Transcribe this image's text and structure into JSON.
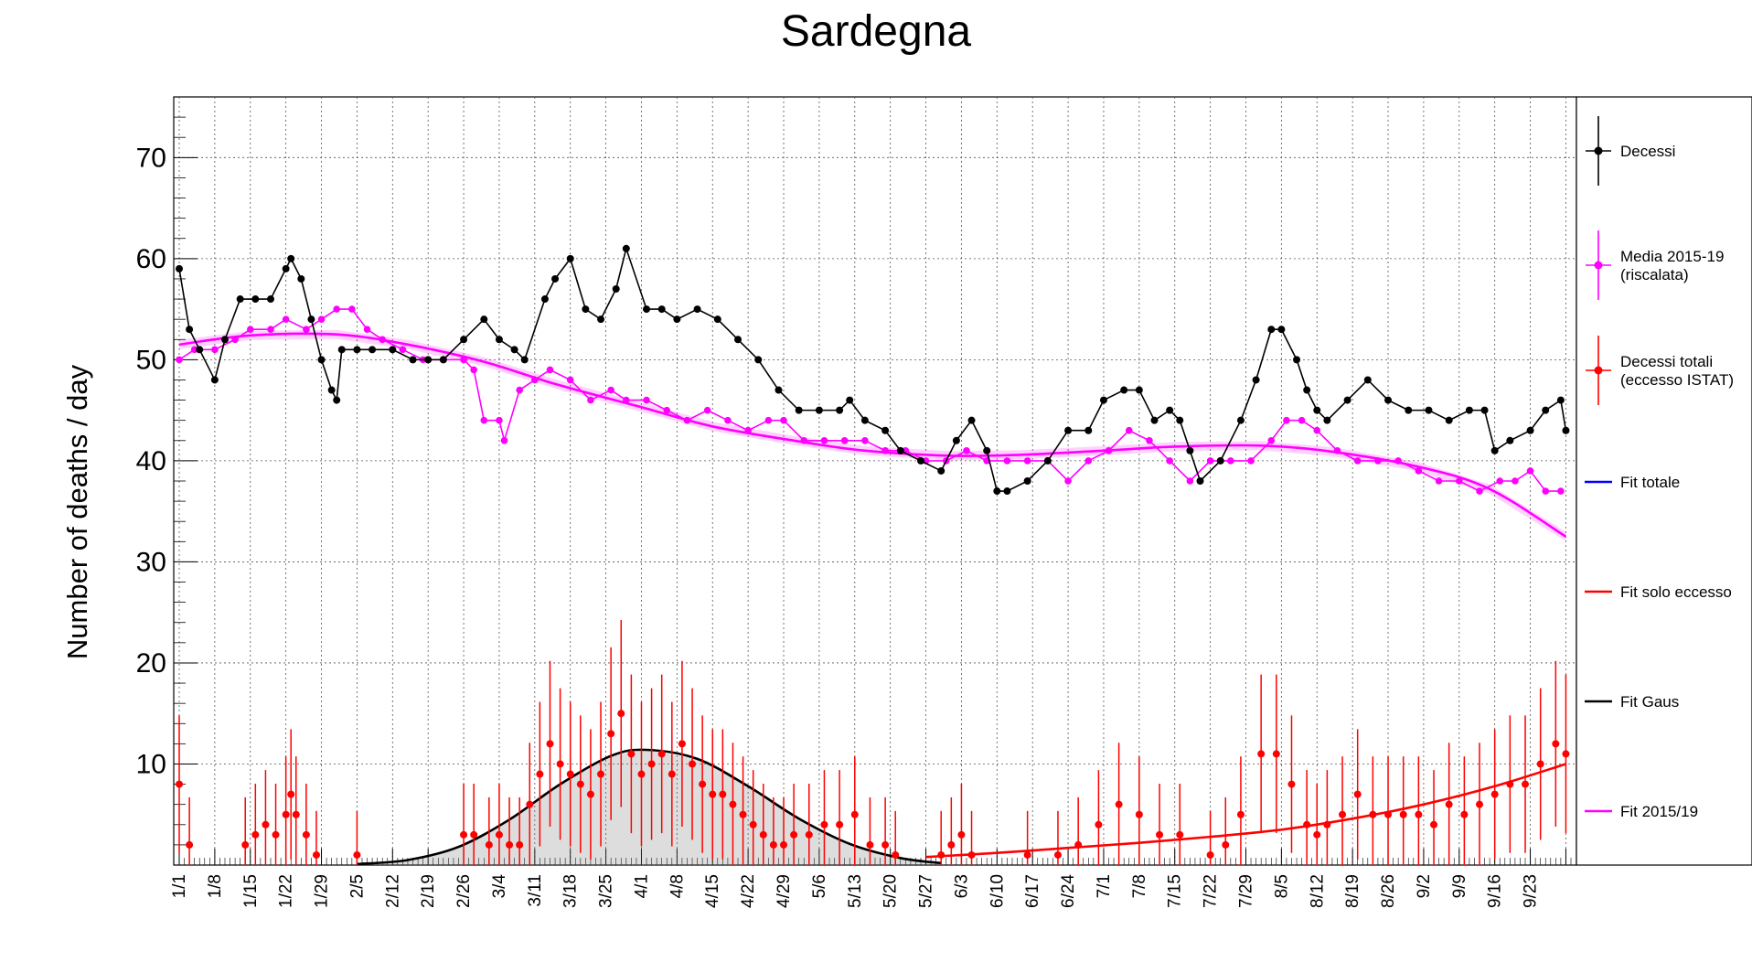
{
  "chart_data": {
    "type": "line",
    "title": "Sardegna",
    "xlabel": "",
    "ylabel": "Number of deaths / day",
    "ylim": [
      0,
      76
    ],
    "xlim": [
      "2020-01-01",
      "2020-10-01"
    ],
    "grid": true,
    "legend_position": "right",
    "y_ticks": [
      10,
      20,
      30,
      40,
      50,
      60,
      70
    ],
    "x_ticks": [
      "1/1",
      "1/8",
      "1/15",
      "1/22",
      "1/29",
      "2/5",
      "2/12",
      "2/19",
      "2/26",
      "3/4",
      "3/11",
      "3/18",
      "3/25",
      "4/1",
      "4/8",
      "4/15",
      "4/22",
      "4/29",
      "5/6",
      "5/13",
      "5/20",
      "5/27",
      "6/3",
      "6/10",
      "6/17",
      "6/24",
      "7/1",
      "7/8",
      "7/15",
      "7/22",
      "7/29",
      "8/5",
      "8/12",
      "8/19",
      "8/26",
      "9/2",
      "9/9",
      "9/16",
      "9/23"
    ],
    "series": [
      {
        "name": "Decessi",
        "color": "#000000",
        "x": [
          "1/1",
          "1/3",
          "1/5",
          "1/8",
          "1/10",
          "1/13",
          "1/16",
          "1/19",
          "1/22",
          "1/23",
          "1/25",
          "1/27",
          "1/29",
          "1/31",
          "2/1",
          "2/2",
          "2/5",
          "2/8",
          "2/12",
          "2/16",
          "2/19",
          "2/22",
          "2/26",
          "3/1",
          "3/4",
          "3/7",
          "3/9",
          "3/13",
          "3/15",
          "3/18",
          "3/21",
          "3/24",
          "3/27",
          "3/29",
          "4/2",
          "4/5",
          "4/8",
          "4/12",
          "4/16",
          "4/20",
          "4/24",
          "4/28",
          "5/2",
          "5/6",
          "5/10",
          "5/12",
          "5/15",
          "5/19",
          "5/22",
          "5/26",
          "5/30",
          "6/2",
          "6/5",
          "6/8",
          "6/10",
          "6/12",
          "6/16",
          "6/20",
          "6/24",
          "6/28",
          "7/1",
          "7/5",
          "7/8",
          "7/11",
          "7/14",
          "7/16",
          "7/18",
          "7/20",
          "7/24",
          "7/28",
          "7/31",
          "8/3",
          "8/5",
          "8/8",
          "8/10",
          "8/12",
          "8/14",
          "8/18",
          "8/22",
          "8/26",
          "8/30",
          "9/3",
          "9/7",
          "9/11",
          "9/14",
          "9/16",
          "9/19",
          "9/23",
          "9/26",
          "9/29",
          "9/30"
        ],
        "y": [
          59,
          53,
          51,
          48,
          52,
          56,
          56,
          56,
          59,
          60,
          58,
          54,
          50,
          47,
          46,
          51,
          51,
          51,
          51,
          50,
          50,
          50,
          52,
          54,
          52,
          51,
          50,
          56,
          58,
          60,
          55,
          54,
          57,
          61,
          55,
          55,
          54,
          55,
          54,
          52,
          50,
          47,
          45,
          45,
          45,
          46,
          44,
          43,
          41,
          40,
          39,
          42,
          44,
          41,
          37,
          37,
          38,
          40,
          43,
          43,
          46,
          47,
          47,
          44,
          45,
          44,
          41,
          38,
          40,
          44,
          48,
          53,
          53,
          50,
          47,
          45,
          44,
          46,
          48,
          46,
          45,
          45,
          44,
          45,
          45,
          41,
          42,
          43,
          45,
          46,
          43
        ]
      },
      {
        "name": "Media 2015-19 (riscalata)",
        "color": "#ff00ff",
        "x": [
          "1/1",
          "1/4",
          "1/8",
          "1/12",
          "1/15",
          "1/19",
          "1/22",
          "1/26",
          "1/29",
          "2/1",
          "2/4",
          "2/7",
          "2/10",
          "2/14",
          "2/18",
          "2/22",
          "2/26",
          "2/28",
          "3/1",
          "3/4",
          "3/5",
          "3/8",
          "3/11",
          "3/14",
          "3/18",
          "3/22",
          "3/26",
          "3/29",
          "4/2",
          "4/6",
          "4/10",
          "4/14",
          "4/18",
          "4/22",
          "4/26",
          "4/29",
          "5/3",
          "5/7",
          "5/11",
          "5/15",
          "5/19",
          "5/23",
          "5/27",
          "5/31",
          "6/4",
          "6/8",
          "6/12",
          "6/16",
          "6/20",
          "6/24",
          "6/28",
          "7/2",
          "7/6",
          "7/10",
          "7/14",
          "7/18",
          "7/22",
          "7/26",
          "7/30",
          "8/3",
          "8/6",
          "8/9",
          "8/12",
          "8/16",
          "8/20",
          "8/24",
          "8/28",
          "9/1",
          "9/5",
          "9/9",
          "9/13",
          "9/17",
          "9/20",
          "9/23",
          "9/26",
          "9/29"
        ],
        "y": [
          50,
          51,
          51,
          52,
          53,
          53,
          54,
          53,
          54,
          55,
          55,
          53,
          52,
          51,
          50,
          50,
          50,
          49,
          44,
          44,
          42,
          47,
          48,
          49,
          48,
          46,
          47,
          46,
          46,
          45,
          44,
          45,
          44,
          43,
          44,
          44,
          42,
          42,
          42,
          42,
          41,
          41,
          40,
          40,
          41,
          40,
          40,
          40,
          40,
          38,
          40,
          41,
          43,
          42,
          40,
          38,
          40,
          40,
          40,
          42,
          44,
          44,
          43,
          41,
          40,
          40,
          40,
          39,
          38,
          38,
          37,
          38,
          38,
          39,
          37,
          37
        ]
      },
      {
        "name": "Decessi totali (eccesso ISTAT)",
        "color": "#ff0000",
        "x": [
          "1/1",
          "1/3",
          "1/14",
          "1/16",
          "1/18",
          "1/20",
          "1/22",
          "1/23",
          "1/24",
          "1/26",
          "1/28",
          "2/5",
          "2/26",
          "2/28",
          "3/2",
          "3/4",
          "3/6",
          "3/8",
          "3/10",
          "3/12",
          "3/14",
          "3/16",
          "3/18",
          "3/20",
          "3/22",
          "3/24",
          "3/26",
          "3/28",
          "3/30",
          "4/1",
          "4/3",
          "4/5",
          "4/7",
          "4/9",
          "4/11",
          "4/13",
          "4/15",
          "4/17",
          "4/19",
          "4/21",
          "4/23",
          "4/25",
          "4/27",
          "4/29",
          "5/1",
          "5/4",
          "5/7",
          "5/10",
          "5/13",
          "5/16",
          "5/19",
          "5/21",
          "5/30",
          "6/1",
          "6/3",
          "6/5",
          "6/16",
          "6/22",
          "6/26",
          "6/30",
          "7/4",
          "7/8",
          "7/12",
          "7/16",
          "7/22",
          "7/25",
          "7/28",
          "8/1",
          "8/4",
          "8/7",
          "8/10",
          "8/12",
          "8/14",
          "8/17",
          "8/20",
          "8/23",
          "8/26",
          "8/29",
          "9/1",
          "9/4",
          "9/7",
          "9/10",
          "9/13",
          "9/16",
          "9/19",
          "9/22",
          "9/25",
          "9/28",
          "9/30"
        ],
        "y": [
          8,
          2,
          2,
          3,
          4,
          3,
          5,
          7,
          5,
          3,
          1,
          1,
          3,
          3,
          2,
          3,
          2,
          2,
          6,
          9,
          12,
          10,
          9,
          8,
          7,
          9,
          13,
          15,
          11,
          9,
          10,
          11,
          9,
          12,
          10,
          8,
          7,
          7,
          6,
          5,
          4,
          3,
          2,
          2,
          3,
          3,
          4,
          4,
          5,
          2,
          2,
          1,
          1,
          2,
          3,
          1,
          1,
          1,
          2,
          4,
          6,
          5,
          3,
          3,
          1,
          2,
          5,
          11,
          11,
          8,
          4,
          3,
          4,
          5,
          7,
          5,
          5,
          5,
          5,
          4,
          6,
          5,
          6,
          7,
          8,
          8,
          10,
          12,
          11
        ]
      },
      {
        "name": "Fit totale",
        "color": "#0000ff",
        "x": [],
        "y": []
      },
      {
        "name": "Fit solo eccesso",
        "color": "#ff0000",
        "x": [
          "5/27",
          "6/10",
          "6/24",
          "7/8",
          "7/22",
          "8/5",
          "8/19",
          "9/2",
          "9/16",
          "9/30"
        ],
        "y": [
          0.8,
          1.2,
          1.7,
          2.2,
          2.8,
          3.5,
          4.6,
          6.0,
          7.8,
          10.0
        ]
      },
      {
        "name": "Fit Gaus",
        "color": "#000000",
        "x": [
          "2/5",
          "2/15",
          "2/25",
          "3/6",
          "3/16",
          "3/26",
          "4/2",
          "4/12",
          "4/22",
          "5/2",
          "5/12",
          "5/22",
          "5/30"
        ],
        "y": [
          0.1,
          0.5,
          1.8,
          4.5,
          8.0,
          10.8,
          11.4,
          10.5,
          7.8,
          4.6,
          2.1,
          0.7,
          0.2
        ]
      },
      {
        "name": "Fit 2015/19",
        "color": "#ff00ff",
        "x": [
          "1/1",
          "1/15",
          "2/1",
          "2/15",
          "3/1",
          "3/15",
          "4/1",
          "4/15",
          "5/1",
          "5/15",
          "6/1",
          "6/15",
          "7/1",
          "7/15",
          "8/1",
          "8/15",
          "9/1",
          "9/15",
          "9/30"
        ],
        "y": [
          51.5,
          52.4,
          52.5,
          51.5,
          49.8,
          47.6,
          45.3,
          43.4,
          42.0,
          41.0,
          40.5,
          40.6,
          41.0,
          41.4,
          41.5,
          40.9,
          39.4,
          37.2,
          32.5
        ]
      }
    ]
  }
}
